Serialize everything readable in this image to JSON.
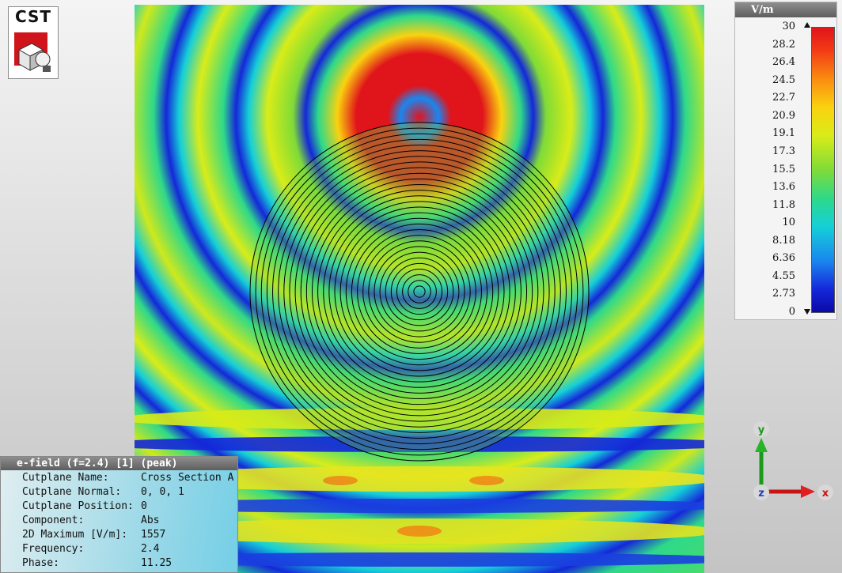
{
  "logo": {
    "text": "CST"
  },
  "legend": {
    "unit": "V/m",
    "ticks": [
      "30",
      "28.2",
      "26.4",
      "24.5",
      "22.7",
      "20.9",
      "19.1",
      "17.3",
      "15.5",
      "13.6",
      "11.8",
      "10",
      "8.18",
      "6.36",
      "4.55",
      "2.73",
      "0"
    ]
  },
  "info": {
    "title": "e-field (f=2.4) [1] (peak)",
    "rows": [
      {
        "key": "Cutplane Name:",
        "value": "Cross Section A"
      },
      {
        "key": "Cutplane Normal:",
        "value": "0, 0, 1"
      },
      {
        "key": "Cutplane Position:",
        "value": "0"
      },
      {
        "key": "Component:",
        "value": "Abs"
      },
      {
        "key": "2D Maximum [V/m]:",
        "value": "1557"
      },
      {
        "key": "Frequency:",
        "value": "2.4"
      },
      {
        "key": "Phase:",
        "value": "11.25"
      }
    ]
  },
  "axes": {
    "y": "y",
    "z": "z",
    "x": "x"
  },
  "colors": {
    "high": "#e0141b",
    "mid": "#7fdb38",
    "low": "#0a0aa6"
  },
  "lens": {
    "ring_count": 30
  }
}
